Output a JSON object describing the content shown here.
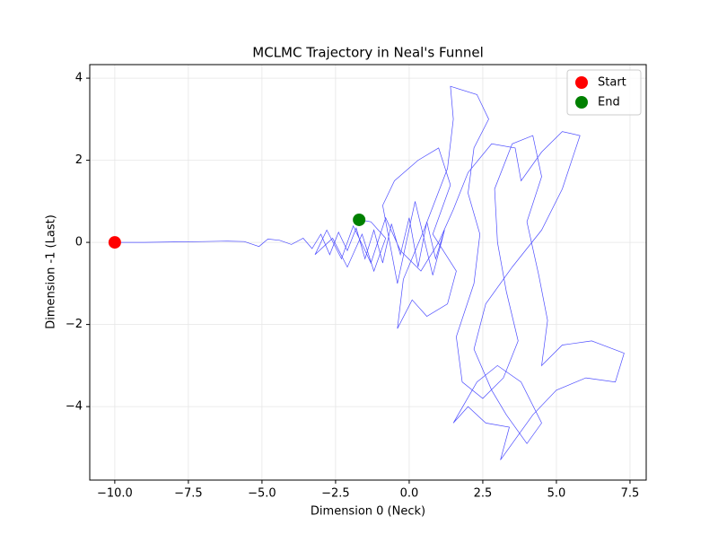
{
  "chart_data": {
    "type": "line",
    "title": "MCLMC Trajectory in Neal's Funnel",
    "xlabel": "Dimension 0 (Neck)",
    "ylabel": "Dimension -1 (Last)",
    "xlim": [
      -10.85,
      8.05
    ],
    "ylim": [
      -5.79,
      4.33
    ],
    "xticks": [
      {
        "value": -10,
        "label": "−10.0"
      },
      {
        "value": -7.5,
        "label": "−7.5"
      },
      {
        "value": -5,
        "label": "−5.0"
      },
      {
        "value": -2.5,
        "label": "−2.5"
      },
      {
        "value": 0,
        "label": "0.0"
      },
      2.5,
      {
        "value": 5,
        "label": "5.0"
      },
      7.5
    ],
    "yticks": [
      {
        "value": -4,
        "label": "−4"
      },
      {
        "value": -2,
        "label": "−2"
      },
      0,
      2,
      4
    ],
    "grid": true,
    "legend": "upper right",
    "series": [
      {
        "color": "#0000ff",
        "x": [
          -10,
          -9,
          -8,
          -7,
          -6.2,
          -5.6,
          -5.1,
          -4.8,
          -4.4,
          -4.0,
          -3.6,
          -3.3,
          -3.0,
          -2.7,
          -2.4,
          -2.1,
          -1.8,
          -1.5,
          -1.2,
          -0.9,
          -0.6,
          -0.3,
          0,
          0.3,
          0.6,
          0.9,
          1.2,
          0.8,
          0.2,
          -0.4,
          -0.9,
          -0.5,
          0.3,
          1.0,
          1.4,
          0.8,
          1.6,
          1.3,
          0.6,
          0.1,
          -0.4,
          -0.2,
          0.5,
          1.3,
          1.5,
          1.4,
          2.3,
          2.7,
          2.2,
          2.0,
          2.4,
          2.2,
          1.6,
          1.8,
          2.5,
          3.2,
          3.7,
          3.3,
          3.0,
          2.9,
          3.5,
          4.2,
          4.5,
          4.0,
          4.4,
          4.7,
          4.5,
          5.2,
          6.2,
          7.3,
          7.0,
          6.0,
          5.0,
          4.2,
          3.6,
          3.1,
          3.4,
          2.6,
          2.0,
          1.5,
          2.3,
          3.0,
          3.8,
          4.5,
          4.0,
          3.3,
          2.8,
          2.2,
          2.6,
          3.5,
          4.5,
          5.2,
          5.8,
          5.2,
          4.5,
          3.8,
          3.6,
          2.8,
          2.0,
          1.5,
          1.0,
          0.4,
          -0.3,
          -0.8,
          -1.3,
          -1.9,
          -2.3,
          -2.8,
          -3.2,
          -2.6,
          -2.1,
          -1.6,
          -1.2,
          -0.8,
          -1.3,
          -1.7
        ],
        "y": [
          0,
          0,
          0.01,
          0.02,
          0.03,
          0.02,
          -0.1,
          0.08,
          0.05,
          -0.05,
          0.1,
          -0.15,
          0.2,
          -0.3,
          0.25,
          -0.2,
          0.35,
          -0.4,
          0.3,
          -0.5,
          0.45,
          -0.3,
          0.6,
          -0.6,
          0.5,
          -0.4,
          0.3,
          -0.8,
          1.0,
          -1.0,
          0.9,
          1.5,
          2.0,
          2.3,
          1.4,
          0.2,
          -0.7,
          -1.5,
          -1.8,
          -1.4,
          -2.1,
          -0.9,
          0.3,
          1.8,
          3.0,
          3.8,
          3.6,
          3.0,
          2.3,
          1.2,
          0.2,
          -1.0,
          -2.3,
          -3.4,
          -3.8,
          -3.3,
          -2.4,
          -1.2,
          0.0,
          1.3,
          2.4,
          2.6,
          1.6,
          0.5,
          -0.8,
          -1.9,
          -3.0,
          -2.5,
          -2.4,
          -2.7,
          -3.4,
          -3.3,
          -3.6,
          -4.2,
          -4.8,
          -5.3,
          -4.5,
          -4.4,
          -4.0,
          -4.4,
          -3.4,
          -3.0,
          -3.4,
          -4.4,
          -4.9,
          -4.2,
          -3.6,
          -2.6,
          -1.5,
          -0.6,
          0.3,
          1.3,
          2.6,
          2.7,
          2.2,
          1.5,
          2.3,
          2.4,
          1.7,
          0.8,
          0.0,
          -0.7,
          -0.2,
          0.6,
          -0.5,
          0.4,
          -0.4,
          0.3,
          -0.3,
          0.1,
          -0.6,
          0.2,
          -0.7,
          0.1,
          0.5,
          0.55
        ]
      }
    ],
    "markers": [
      {
        "name": "Start",
        "color": "#ff0000",
        "x": -10,
        "y": 0
      },
      {
        "name": "End",
        "color": "#008000",
        "x": -1.7,
        "y": 0.55
      }
    ]
  }
}
